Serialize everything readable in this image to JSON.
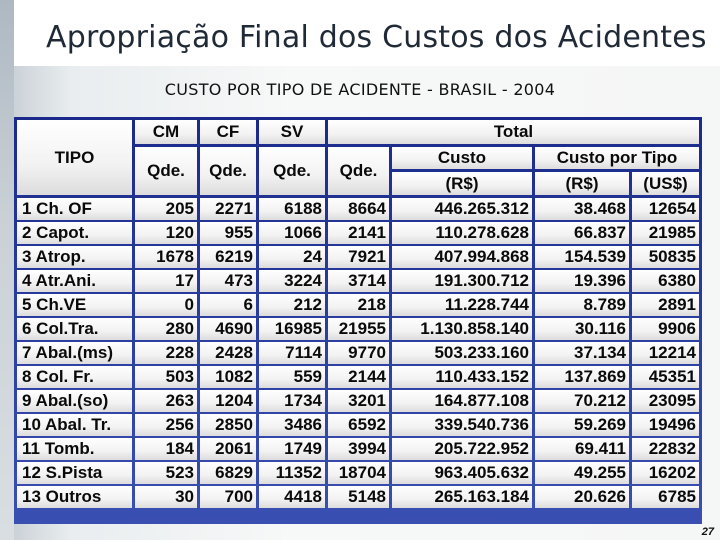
{
  "slide": {
    "title": "Apropriação Final dos Custos dos Acidentes",
    "subtitle": "CUSTO POR TIPO DE ACIDENTE - BRASIL - 2004",
    "page_number": "27"
  },
  "table": {
    "headers": {
      "tipo": "TIPO",
      "cm": "CM",
      "cf": "CF",
      "sv": "SV",
      "total": "Total",
      "qde_cm": "Qde.",
      "qde_cf": "Qde.",
      "qde_sv": "Qde.",
      "qde_total": "Qde.",
      "custo": "Custo",
      "custo_unit": "(R$)",
      "custo_por_tipo": "Custo por Tipo",
      "cpt_rs": "(R$)",
      "cpt_us": "(US$)"
    },
    "rows": [
      {
        "tipo": "1 Ch. OF",
        "cm": "205",
        "cf": "2271",
        "sv": "6188",
        "qde": "8664",
        "custo": "446.265.312",
        "cpt_rs": "38.468",
        "cpt_us": "12654"
      },
      {
        "tipo": "2 Capot.",
        "cm": "120",
        "cf": "955",
        "sv": "1066",
        "qde": "2141",
        "custo": "110.278.628",
        "cpt_rs": "66.837",
        "cpt_us": "21985"
      },
      {
        "tipo": "3 Atrop.",
        "cm": "1678",
        "cf": "6219",
        "sv": "24",
        "qde": "7921",
        "custo": "407.994.868",
        "cpt_rs": "154.539",
        "cpt_us": "50835"
      },
      {
        "tipo": "4 Atr.Ani.",
        "cm": "17",
        "cf": "473",
        "sv": "3224",
        "qde": "3714",
        "custo": "191.300.712",
        "cpt_rs": "19.396",
        "cpt_us": "6380"
      },
      {
        "tipo": "5 Ch.VE",
        "cm": "0",
        "cf": "6",
        "sv": "212",
        "qde": "218",
        "custo": "11.228.744",
        "cpt_rs": "8.789",
        "cpt_us": "2891"
      },
      {
        "tipo": "6 Col.Tra.",
        "cm": "280",
        "cf": "4690",
        "sv": "16985",
        "qde": "21955",
        "custo": "1.130.858.140",
        "cpt_rs": "30.116",
        "cpt_us": "9906"
      },
      {
        "tipo": "7 Abal.(ms)",
        "cm": "228",
        "cf": "2428",
        "sv": "7114",
        "qde": "9770",
        "custo": "503.233.160",
        "cpt_rs": "37.134",
        "cpt_us": "12214"
      },
      {
        "tipo": "8 Col. Fr.",
        "cm": "503",
        "cf": "1082",
        "sv": "559",
        "qde": "2144",
        "custo": "110.433.152",
        "cpt_rs": "137.869",
        "cpt_us": "45351"
      },
      {
        "tipo": "9 Abal.(so)",
        "cm": "263",
        "cf": "1204",
        "sv": "1734",
        "qde": "3201",
        "custo": "164.877.108",
        "cpt_rs": "70.212",
        "cpt_us": "23095"
      },
      {
        "tipo": "10 Abal. Tr.",
        "cm": "256",
        "cf": "2850",
        "sv": "3486",
        "qde": "6592",
        "custo": "339.540.736",
        "cpt_rs": "59.269",
        "cpt_us": "19496"
      },
      {
        "tipo": "11 Tomb.",
        "cm": "184",
        "cf": "2061",
        "sv": "1749",
        "qde": "3994",
        "custo": "205.722.952",
        "cpt_rs": "69.411",
        "cpt_us": "22832"
      },
      {
        "tipo": "12 S.Pista",
        "cm": "523",
        "cf": "6829",
        "sv": "11352",
        "qde": "18704",
        "custo": "963.405.632",
        "cpt_rs": "49.255",
        "cpt_us": "16202"
      },
      {
        "tipo": "13 Outros",
        "cm": "30",
        "cf": "700",
        "sv": "4418",
        "qde": "5148",
        "custo": "265.163.184",
        "cpt_rs": "20.626",
        "cpt_us": "6785"
      }
    ]
  }
}
